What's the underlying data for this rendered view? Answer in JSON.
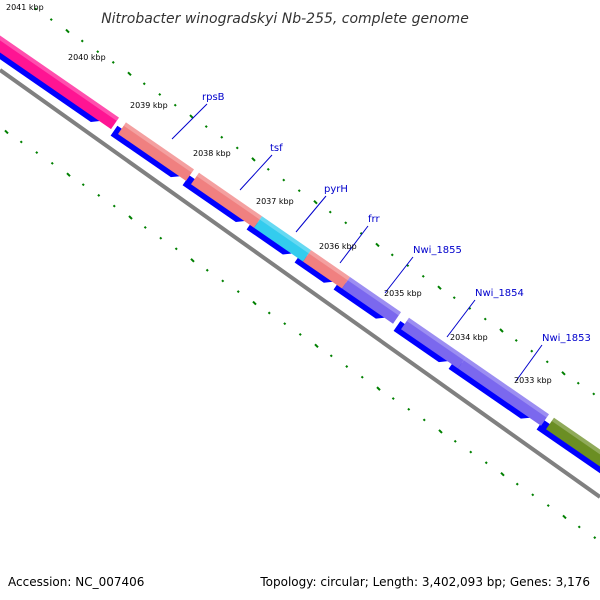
{
  "title": "Nitrobacter winogradskyi Nb-255, complete genome",
  "footer": {
    "accession": "Accession: NC_007406",
    "summary": "Topology: circular; Length: 3,402,093 bp; Genes: 3,176"
  },
  "ticks": [
    "2041 kbp",
    "2040 kbp",
    "2039 kbp",
    "2038 kbp",
    "2037 kbp",
    "2036 kbp",
    "2035 kbp",
    "2034 kbp",
    "2033 kbp"
  ],
  "genes": [
    {
      "name": "rpsB",
      "color": "#f08080"
    },
    {
      "name": "tsf",
      "color": "#f08080"
    },
    {
      "name": "pyrH",
      "color": "#33ccee"
    },
    {
      "name": "frr",
      "color": "#f08080"
    },
    {
      "name": "Nwi_1855",
      "color": "#7b68ee"
    },
    {
      "name": "Nwi_1854",
      "color": "#7b68ee"
    },
    {
      "name": "Nwi_1853",
      "color": "#7b68ee"
    }
  ],
  "colors": {
    "pink_feature": "#ff1493",
    "olive_feature": "#6b8e23",
    "cds_strand": "#0000ff",
    "backbone": "#808080",
    "tick_marks": "#008000",
    "label_color": "#0000cc"
  }
}
